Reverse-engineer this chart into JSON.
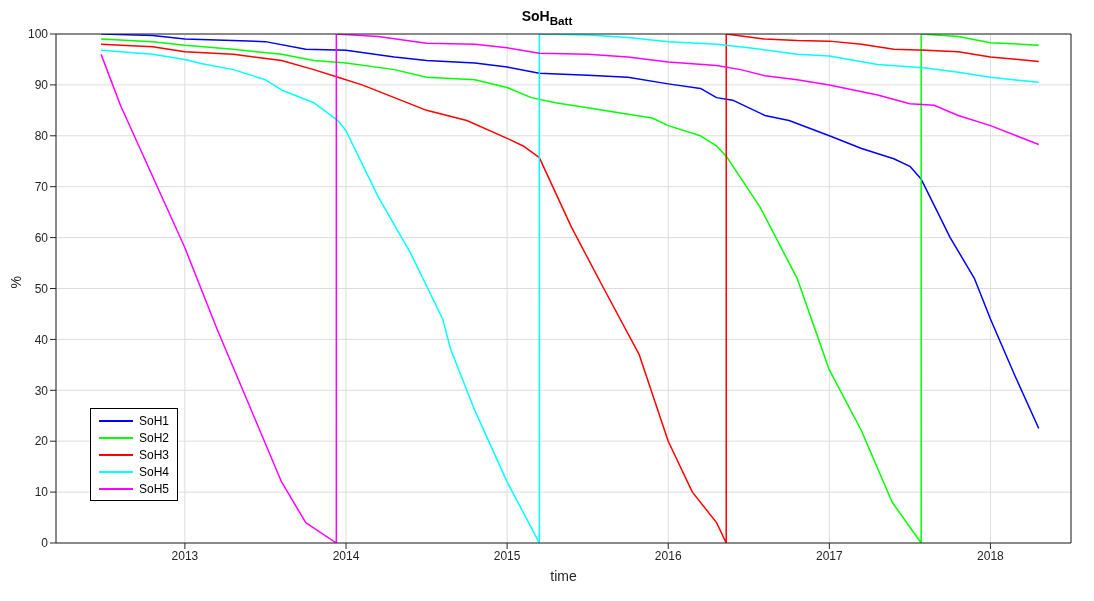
{
  "chart_data": {
    "type": "line",
    "title": "SoH$_{Batt}$",
    "xlabel": "time",
    "ylabel": "%",
    "xlim": [
      2012.2,
      2018.5
    ],
    "xticks": [
      2013,
      2014,
      2015,
      2016,
      2017,
      2018
    ],
    "ylim": [
      0,
      100
    ],
    "yticks": [
      0,
      10,
      20,
      30,
      40,
      50,
      60,
      70,
      80,
      90,
      100
    ],
    "grid": true,
    "legend": "bottom left",
    "marker": "none",
    "line_style": "solid",
    "series": [
      {
        "name": "SoH1",
        "color": "#0000ff",
        "x": [
          2012.48,
          2012.8,
          2013.0,
          2013.5,
          2013.75,
          2014.0,
          2014.3,
          2014.5,
          2014.8,
          2015.0,
          2015.2,
          2015.5,
          2015.75,
          2016.0,
          2016.2,
          2016.3,
          2016.4,
          2016.6,
          2016.75,
          2017.0,
          2017.2,
          2017.4,
          2017.5,
          2017.57,
          2017.75,
          2017.9,
          2018.0,
          2018.15,
          2018.3
        ],
        "values": [
          100,
          99.7,
          99,
          98.5,
          97,
          96.8,
          95.5,
          94.8,
          94.3,
          93.5,
          92.3,
          91.9,
          91.5,
          90.2,
          89.3,
          87.5,
          87,
          84,
          83,
          80,
          77.5,
          75.5,
          74,
          71.5,
          60,
          52,
          44,
          33,
          22.5
        ]
      },
      {
        "name": "SoH2",
        "color": "#00ff00",
        "x": [
          2012.48,
          2012.8,
          2013.0,
          2013.3,
          2013.6,
          2013.8,
          2014.0,
          2014.3,
          2014.5,
          2014.8,
          2015.0,
          2015.15,
          2015.3,
          2015.5,
          2015.8,
          2015.9,
          2016.0,
          2016.2,
          2016.3,
          2016.36,
          2016.57,
          2016.8,
          2017.0,
          2017.2,
          2017.39,
          2017.57,
          2017.57,
          2017.8,
          2018.0,
          2018.3
        ],
        "values": [
          99,
          98.5,
          97.8,
          97,
          96,
          94.8,
          94.3,
          93,
          91.5,
          91,
          89.5,
          87.5,
          86.5,
          85.5,
          84,
          83.5,
          82,
          80,
          78,
          76,
          66,
          52,
          34,
          22,
          8,
          0,
          100,
          99.5,
          98.3,
          97.8
        ]
      },
      {
        "name": "SoH3",
        "color": "#ff0000",
        "x": [
          2012.48,
          2012.8,
          2013.0,
          2013.3,
          2013.6,
          2013.8,
          2013.95,
          2014.1,
          2014.3,
          2014.5,
          2014.75,
          2015.0,
          2015.1,
          2015.2,
          2015.4,
          2015.6,
          2015.82,
          2016.0,
          2016.15,
          2016.3,
          2016.36,
          2016.36,
          2016.6,
          2016.8,
          2017.0,
          2017.2,
          2017.4,
          2017.6,
          2017.8,
          2018.0,
          2018.3
        ],
        "values": [
          98,
          97.5,
          96.5,
          96,
          94.8,
          93,
          91.5,
          90,
          87.5,
          85,
          83,
          79.5,
          78,
          75.7,
          62,
          50,
          37,
          20,
          10,
          4,
          0,
          100,
          99,
          98.7,
          98.6,
          98,
          97,
          96.8,
          96.5,
          95.5,
          94.6
        ]
      },
      {
        "name": "SoH4",
        "color": "#00ffff",
        "x": [
          2012.48,
          2012.8,
          2013.0,
          2013.1,
          2013.3,
          2013.5,
          2013.6,
          2013.8,
          2013.95,
          2014.0,
          2014.2,
          2014.4,
          2014.6,
          2014.65,
          2014.8,
          2015.0,
          2015.1,
          2015.2,
          2015.2,
          2015.5,
          2015.75,
          2016.0,
          2016.3,
          2016.5,
          2016.8,
          2017.0,
          2017.3,
          2017.6,
          2017.8,
          2018.0,
          2018.3
        ],
        "values": [
          96.8,
          96,
          95,
          94.2,
          93,
          91,
          89,
          86.5,
          83,
          81,
          68,
          57,
          44,
          38,
          26,
          12,
          6,
          0,
          100,
          99.8,
          99.3,
          98.5,
          98,
          97.3,
          96,
          95.7,
          94,
          93.3,
          92.5,
          91.5,
          90.5
        ]
      },
      {
        "name": "SoH5",
        "color": "#ff00ff",
        "x": [
          2012.48,
          2012.6,
          2012.8,
          2013.0,
          2013.2,
          2013.4,
          2013.6,
          2013.75,
          2013.94,
          2013.94,
          2014.2,
          2014.5,
          2014.8,
          2015.0,
          2015.2,
          2015.5,
          2015.75,
          2016.0,
          2016.3,
          2016.45,
          2016.6,
          2016.8,
          2017.0,
          2017.3,
          2017.5,
          2017.65,
          2017.8,
          2018.0,
          2018.3
        ],
        "values": [
          96,
          86,
          72,
          58,
          42,
          27,
          12,
          4,
          0,
          100,
          99.5,
          98.2,
          98,
          97.3,
          96.2,
          96,
          95.5,
          94.5,
          93.8,
          93,
          91.8,
          91,
          90,
          88,
          86.3,
          86,
          84,
          82,
          78.3
        ]
      }
    ]
  }
}
